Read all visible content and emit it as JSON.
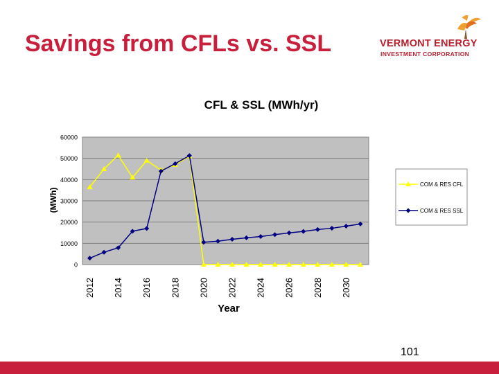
{
  "slide": {
    "title": "Savings from CFLs vs. SSL",
    "page_number": "101"
  },
  "logo": {
    "line1": "VERMONT ENERGY",
    "line2": "INVESTMENT CORPORATION",
    "color": "#b8202e",
    "accent": "#f0a030"
  },
  "colors": {
    "title": "#c8203c",
    "bottom_bar": "#c8203c",
    "plot_bg": "#c0c0c0",
    "gridline": "#808080",
    "cfl_series": "#ffff00",
    "ssl_series": "#000080"
  },
  "chart_data": {
    "type": "line",
    "title": "CFL & SSL (MWh/yr)",
    "xlabel": "Year",
    "ylabel": "(MWh)",
    "ylim": [
      0,
      60000
    ],
    "yticks": [
      "0",
      "10000",
      "20000",
      "30000",
      "40000",
      "50000",
      "60000"
    ],
    "x": [
      2012,
      2013,
      2014,
      2015,
      2016,
      2017,
      2018,
      2019,
      2020,
      2021,
      2022,
      2023,
      2024,
      2025,
      2026,
      2027,
      2028,
      2029,
      2030,
      2031
    ],
    "xtick_labels": [
      "2012",
      "2014",
      "2016",
      "2018",
      "2020",
      "2022",
      "2024",
      "2026",
      "2028",
      "2030"
    ],
    "grid": true,
    "legend": "right",
    "series": [
      {
        "name": "COM & RES CFL",
        "color": "#ffff00",
        "marker": "triangle",
        "values": [
          36500,
          45000,
          51500,
          41000,
          49000,
          44500,
          47000,
          51000,
          0,
          0,
          0,
          0,
          0,
          0,
          0,
          0,
          0,
          0,
          0,
          0
        ]
      },
      {
        "name": "COM & RES SSL",
        "color": "#000080",
        "marker": "diamond",
        "values": [
          3000,
          5800,
          7900,
          15700,
          17000,
          44000,
          47500,
          51300,
          10500,
          11000,
          11900,
          12600,
          13200,
          14100,
          14900,
          15600,
          16500,
          17100,
          18100,
          19100
        ]
      }
    ]
  }
}
